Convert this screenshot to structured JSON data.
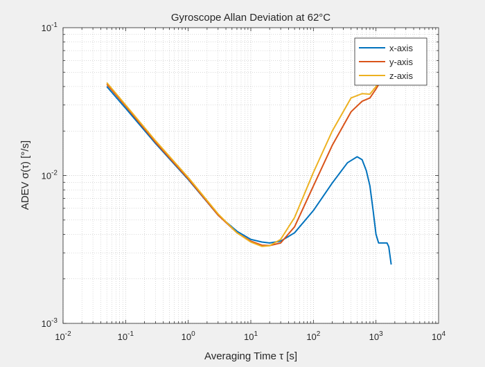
{
  "chart_data": {
    "type": "line",
    "title": "Gyroscope Allan Deviation at 62°C",
    "xlabel": "Averaging Time τ [s]",
    "ylabel": "ADEV σ(τ) [°/s]",
    "xscale": "log",
    "yscale": "log",
    "xlim": [
      0.01,
      10000
    ],
    "ylim": [
      0.001,
      0.1
    ],
    "grid": "on (major and minor)",
    "legend": "top-right",
    "x_ticks": [
      {
        "base": "10",
        "exp": "-2",
        "value": 0.01
      },
      {
        "base": "10",
        "exp": "-1",
        "value": 0.1
      },
      {
        "base": "10",
        "exp": "0",
        "value": 1
      },
      {
        "base": "10",
        "exp": "1",
        "value": 10
      },
      {
        "base": "10",
        "exp": "2",
        "value": 100
      },
      {
        "base": "10",
        "exp": "3",
        "value": 1000
      },
      {
        "base": "10",
        "exp": "4",
        "value": 10000
      }
    ],
    "y_ticks": [
      {
        "base": "10",
        "exp": "-3",
        "value": 0.001
      },
      {
        "base": "10",
        "exp": "-2",
        "value": 0.01
      },
      {
        "base": "10",
        "exp": "-1",
        "value": 0.1
      }
    ],
    "series": [
      {
        "name": "x-axis",
        "color": "#0072bd",
        "points": [
          [
            0.05,
            0.04
          ],
          [
            0.1,
            0.0285
          ],
          [
            0.3,
            0.0165
          ],
          [
            1,
            0.0094
          ],
          [
            3,
            0.0054
          ],
          [
            6,
            0.0042
          ],
          [
            10,
            0.0037
          ],
          [
            15,
            0.00355
          ],
          [
            20,
            0.0035
          ],
          [
            30,
            0.0036
          ],
          [
            50,
            0.0041
          ],
          [
            100,
            0.0058
          ],
          [
            200,
            0.0089
          ],
          [
            350,
            0.0122
          ],
          [
            500,
            0.0134
          ],
          [
            600,
            0.0128
          ],
          [
            700,
            0.0108
          ],
          [
            800,
            0.0085
          ],
          [
            900,
            0.0058
          ],
          [
            1000,
            0.004
          ],
          [
            1100,
            0.0035
          ],
          [
            1200,
            0.0035
          ],
          [
            1300,
            0.0035
          ],
          [
            1500,
            0.0035
          ],
          [
            1600,
            0.0033
          ],
          [
            1750,
            0.0025
          ]
        ]
      },
      {
        "name": "y-axis",
        "color": "#d95319",
        "points": [
          [
            0.05,
            0.0415
          ],
          [
            0.1,
            0.0295
          ],
          [
            0.3,
            0.0168
          ],
          [
            1,
            0.0095
          ],
          [
            3,
            0.0054
          ],
          [
            6,
            0.0041
          ],
          [
            10,
            0.0036
          ],
          [
            15,
            0.00338
          ],
          [
            20,
            0.00336
          ],
          [
            30,
            0.0035
          ],
          [
            50,
            0.0045
          ],
          [
            100,
            0.0085
          ],
          [
            200,
            0.016
          ],
          [
            400,
            0.027
          ],
          [
            600,
            0.0318
          ],
          [
            800,
            0.0335
          ],
          [
            1000,
            0.0385
          ],
          [
            1150,
            0.0425
          ]
        ]
      },
      {
        "name": "z-axis",
        "color": "#edb120",
        "points": [
          [
            0.05,
            0.0425
          ],
          [
            0.1,
            0.03
          ],
          [
            0.3,
            0.0172
          ],
          [
            1,
            0.0097
          ],
          [
            3,
            0.0055
          ],
          [
            6,
            0.0041
          ],
          [
            10,
            0.00355
          ],
          [
            15,
            0.00332
          ],
          [
            20,
            0.00335
          ],
          [
            30,
            0.0037
          ],
          [
            50,
            0.0052
          ],
          [
            100,
            0.0105
          ],
          [
            200,
            0.02
          ],
          [
            400,
            0.0335
          ],
          [
            600,
            0.0358
          ],
          [
            800,
            0.0355
          ],
          [
            1000,
            0.04
          ],
          [
            1100,
            0.043
          ]
        ]
      }
    ]
  }
}
